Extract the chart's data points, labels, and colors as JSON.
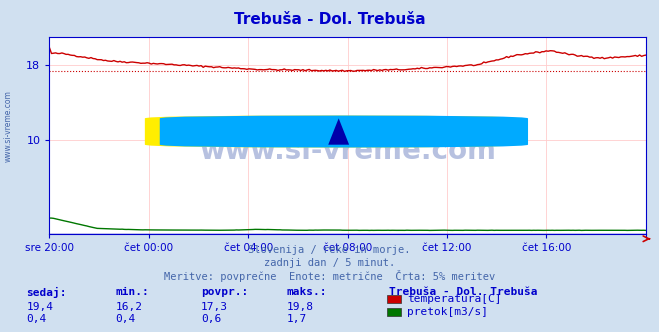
{
  "title": "Trebuša - Dol. Trebuša",
  "title_color": "#0000cc",
  "bg_color": "#d0e0f0",
  "plot_bg_color": "#ffffff",
  "grid_color": "#ffcccc",
  "axis_color": "#0000cc",
  "tick_color": "#0000cc",
  "xlabel_labels": [
    "sre 20:00",
    "čet 00:00",
    "čet 04:00",
    "čet 08:00",
    "čet 12:00",
    "čet 16:00",
    ""
  ],
  "ylim": [
    0,
    21
  ],
  "yticks": [
    10,
    18
  ],
  "temp_color": "#cc0000",
  "flow_color": "#007700",
  "watermark": "www.si-vreme.com",
  "subtitle1": "Slovenija / reke in morje.",
  "subtitle2": "zadnji dan / 5 minut.",
  "subtitle3": "Meritve: povprečne  Enote: metrične  Črta: 5% meritev",
  "stat_headers": [
    "sedaj:",
    "min.:",
    "povpr.:",
    "maks.:"
  ],
  "stat_row1": [
    "19,4",
    "16,2",
    "17,3",
    "19,8"
  ],
  "stat_row2": [
    "0,4",
    "0,4",
    "0,6",
    "1,7"
  ],
  "legend_title": "Trebuša - Dol. Trebuša",
  "legend_items": [
    "temperatura[C]",
    "pretok[m3/s]"
  ],
  "legend_colors": [
    "#cc0000",
    "#007700"
  ],
  "temp_avg_value": 17.3
}
